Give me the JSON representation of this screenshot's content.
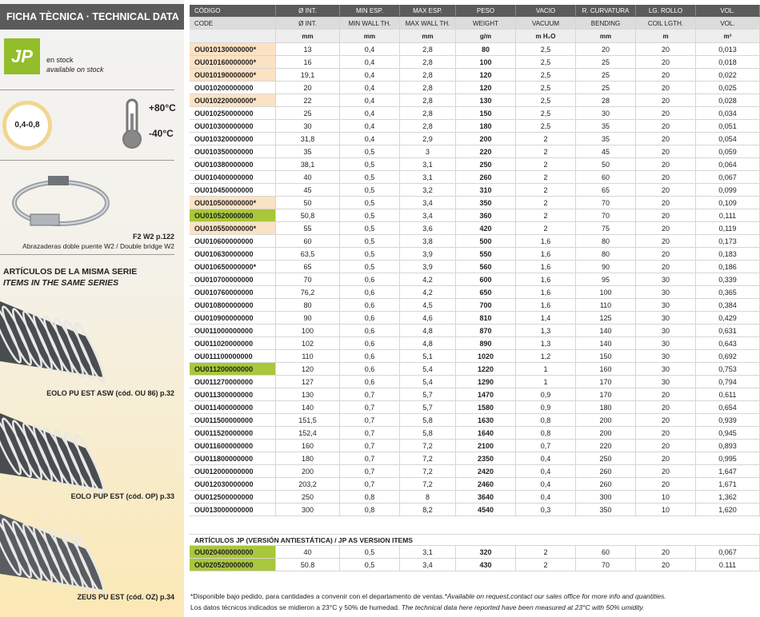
{
  "sidebar": {
    "title": "FICHA TÈCNICA · TECHNICAL DATA",
    "badge": "JP",
    "stock": [
      "en stock",
      "available on stock"
    ],
    "thickness": "0,4-0,8",
    "temp_max": "+80°C",
    "temp_min": "-40°C",
    "clamp_ref": "F2 W2 p.122",
    "clamp_desc": "Abrazaderas doble puente W2 / Double bridge W2",
    "series_title": [
      "ARTÍCULOS DE LA MISMA SERIE",
      "ITEMS IN THE SAME SERIES"
    ],
    "related": [
      "EOLO PU EST ASW (cód. OU 86) p.32",
      "EOLO PUP EST (cód. OP) p.33",
      "ZEUS PU EST (cód. OZ) p.34"
    ]
  },
  "table": {
    "header_es": [
      "CÓDIGO",
      "Ø INT.",
      "MIN ESP.",
      "MAX ESP.",
      "PESO",
      "VACIO",
      "R. CURVATURA",
      "LG. ROLLO",
      "VOL."
    ],
    "header_en": [
      "CODE",
      "Ø INT.",
      "MIN WALL TH.",
      "MAX WALL TH.",
      "WEIGHT",
      "VACUUM",
      "BENDING",
      "COIL LGTH.",
      "VOL."
    ],
    "units": [
      "mm",
      "mm",
      "mm",
      "g/m",
      "m H₂O",
      "mm",
      "m",
      "m³"
    ],
    "rows": [
      {
        "cells": [
          "OU010130000000*",
          "13",
          "0,4",
          "2,8",
          "80",
          "2,5",
          "20",
          "20",
          "0,013"
        ],
        "highlight": "#fbe2c4"
      },
      {
        "cells": [
          "OU010160000000*",
          "16",
          "0,4",
          "2,8",
          "100",
          "2,5",
          "25",
          "20",
          "0,018"
        ],
        "highlight": "#fbe2c4"
      },
      {
        "cells": [
          "OU010190000000*",
          "19,1",
          "0,4",
          "2,8",
          "120",
          "2,5",
          "25",
          "20",
          "0,022"
        ],
        "highlight": "#fbe2c4"
      },
      {
        "cells": [
          "OU010200000000",
          "20",
          "0,4",
          "2,8",
          "120",
          "2,5",
          "25",
          "20",
          "0,025"
        ]
      },
      {
        "cells": [
          "OU010220000000*",
          "22",
          "0,4",
          "2,8",
          "130",
          "2,5",
          "28",
          "20",
          "0,028"
        ],
        "highlight": "#fbe2c4"
      },
      {
        "cells": [
          "OU010250000000",
          "25",
          "0,4",
          "2,8",
          "150",
          "2,5",
          "30",
          "20",
          "0,034"
        ]
      },
      {
        "cells": [
          "OU010300000000",
          "30",
          "0,4",
          "2,8",
          "180",
          "2,5",
          "35",
          "20",
          "0,051"
        ]
      },
      {
        "cells": [
          "OU010320000000",
          "31,8",
          "0,4",
          "2,9",
          "200",
          "2",
          "35",
          "20",
          "0,054"
        ]
      },
      {
        "cells": [
          "OU010350000000",
          "35",
          "0,5",
          "3",
          "220",
          "2",
          "45",
          "20",
          "0,059"
        ]
      },
      {
        "cells": [
          "OU010380000000",
          "38,1",
          "0,5",
          "3,1",
          "250",
          "2",
          "50",
          "20",
          "0,064"
        ]
      },
      {
        "cells": [
          "OU010400000000",
          "40",
          "0,5",
          "3,1",
          "260",
          "2",
          "60",
          "20",
          "0,067"
        ]
      },
      {
        "cells": [
          "OU010450000000",
          "45",
          "0,5",
          "3,2",
          "310",
          "2",
          "65",
          "20",
          "0,099"
        ]
      },
      {
        "cells": [
          "OU010500000000*",
          "50",
          "0,5",
          "3,4",
          "350",
          "2",
          "70",
          "20",
          "0,109"
        ],
        "highlight": "#fbe2c4"
      },
      {
        "cells": [
          "OU010520000000",
          "50,8",
          "0,5",
          "3,4",
          "360",
          "2",
          "70",
          "20",
          "0,111"
        ],
        "highlight": "#a9c73a"
      },
      {
        "cells": [
          "OU010550000000*",
          "55",
          "0,5",
          "3,6",
          "420",
          "2",
          "75",
          "20",
          "0,119"
        ],
        "highlight": "#fbe2c4"
      },
      {
        "cells": [
          "OU010600000000",
          "60",
          "0,5",
          "3,8",
          "500",
          "1,6",
          "80",
          "20",
          "0,173"
        ]
      },
      {
        "cells": [
          "OU010630000000",
          "63,5",
          "0,5",
          "3,9",
          "550",
          "1,6",
          "80",
          "20",
          "0,183"
        ]
      },
      {
        "cells": [
          "OU010650000000*",
          "65",
          "0,5",
          "3,9",
          "560",
          "1,6",
          "90",
          "20",
          "0,186"
        ]
      },
      {
        "cells": [
          "OU010700000000",
          "70",
          "0,6",
          "4,2",
          "600",
          "1,6",
          "95",
          "30",
          "0,339"
        ]
      },
      {
        "cells": [
          "OU010760000000",
          "76,2",
          "0,6",
          "4,2",
          "650",
          "1,6",
          "100",
          "30",
          "0,365"
        ]
      },
      {
        "cells": [
          "OU010800000000",
          "80",
          "0,6",
          "4,5",
          "700",
          "1,6",
          "110",
          "30",
          "0,384"
        ]
      },
      {
        "cells": [
          "OU010900000000",
          "90",
          "0,6",
          "4,6",
          "810",
          "1,4",
          "125",
          "30",
          "0,429"
        ]
      },
      {
        "cells": [
          "OU011000000000",
          "100",
          "0,6",
          "4,8",
          "870",
          "1,3",
          "140",
          "30",
          "0,631"
        ]
      },
      {
        "cells": [
          "OU011020000000",
          "102",
          "0,6",
          "4,8",
          "890",
          "1,3",
          "140",
          "30",
          "0,643"
        ]
      },
      {
        "cells": [
          "OU011100000000",
          "110",
          "0,6",
          "5,1",
          "1020",
          "1,2",
          "150",
          "30",
          "0,692"
        ]
      },
      {
        "cells": [
          "OU011200000000",
          "120",
          "0,6",
          "5,4",
          "1220",
          "1",
          "160",
          "30",
          "0,753"
        ],
        "highlight": "#a9c73a"
      },
      {
        "cells": [
          "OU011270000000",
          "127",
          "0,6",
          "5,4",
          "1290",
          "1",
          "170",
          "30",
          "0,794"
        ]
      },
      {
        "cells": [
          "OU011300000000",
          "130",
          "0,7",
          "5,7",
          "1470",
          "0,9",
          "170",
          "20",
          "0,611"
        ]
      },
      {
        "cells": [
          "OU011400000000",
          "140",
          "0,7",
          "5,7",
          "1580",
          "0,9",
          "180",
          "20",
          "0,654"
        ]
      },
      {
        "cells": [
          "OU011500000000",
          "151,5",
          "0,7",
          "5,8",
          "1630",
          "0,8",
          "200",
          "20",
          "0,939"
        ]
      },
      {
        "cells": [
          "OU011520000000",
          "152,4",
          "0,7",
          "5,8",
          "1640",
          "0,8",
          "200",
          "20",
          "0,945"
        ]
      },
      {
        "cells": [
          "OU011600000000",
          "160",
          "0,7",
          "7,2",
          "2100",
          "0,7",
          "220",
          "20",
          "0,893"
        ]
      },
      {
        "cells": [
          "OU011800000000",
          "180",
          "0,7",
          "7,2",
          "2350",
          "0,4",
          "250",
          "20",
          "0,995"
        ]
      },
      {
        "cells": [
          "OU012000000000",
          "200",
          "0,7",
          "7,2",
          "2420",
          "0,4",
          "260",
          "20",
          "1,647"
        ]
      },
      {
        "cells": [
          "OU012030000000",
          "203,2",
          "0,7",
          "7,2",
          "2460",
          "0,4",
          "260",
          "20",
          "1,671"
        ]
      },
      {
        "cells": [
          "OU012500000000",
          "250",
          "0,8",
          "8",
          "3640",
          "0,4",
          "300",
          "10",
          "1,362"
        ]
      },
      {
        "cells": [
          "OU013000000000",
          "300",
          "0,8",
          "8,2",
          "4540",
          "0,3",
          "350",
          "10",
          "1,620"
        ]
      }
    ]
  },
  "jp_table": {
    "title": "ARTÍCULOS JP (VERSIÓN ANTIESTÁTICA) / JP AS VERSION ITEMS",
    "rows": [
      {
        "cells": [
          "OU020400000000",
          "40",
          "0,5",
          "3,1",
          "320",
          "2",
          "60",
          "20",
          "0,067"
        ],
        "highlight": "#a9c73a"
      },
      {
        "cells": [
          "OU020520000000",
          "50.8",
          "0,5",
          "3,4",
          "430",
          "2",
          "70",
          "20",
          "0.111"
        ],
        "highlight": "#a9c73a"
      }
    ]
  },
  "footer": [
    [
      "*Disponible bajo pedido, para cantidades a convenir con el departamento de ventas.",
      "*Available on request,contact our sales office for more info and quantities."
    ],
    [
      "Los datos técnicos indicados se midieron a 23°C y 50% de humedad.",
      "The technical data here reported have been measured at 23°C with 50% umidity."
    ]
  ]
}
